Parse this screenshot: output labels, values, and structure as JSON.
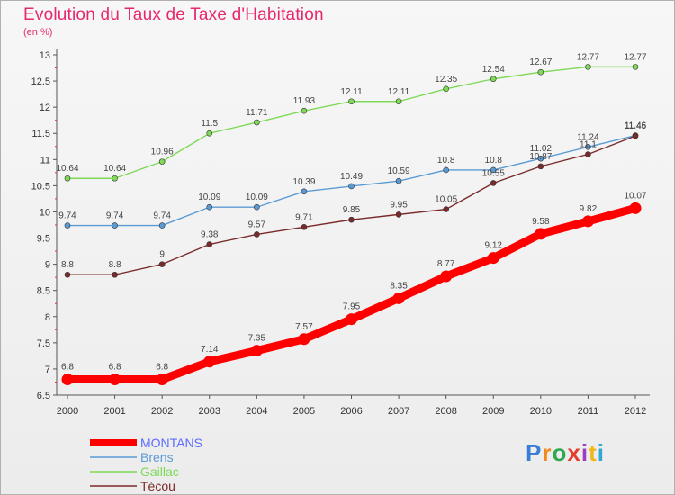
{
  "header": {
    "title": "Evolution du Taux de Taxe d'Habitation",
    "subtitle": "(en %)"
  },
  "logo": {
    "text": "Proxiti",
    "colors": [
      "#3a7fd5",
      "#f08a1c",
      "#2fa84f",
      "#e63a2b",
      "#9b3fbf",
      "#f0b81c",
      "#2fa8d5"
    ]
  },
  "chart_data": {
    "type": "line",
    "x": [
      "2000",
      "2001",
      "2002",
      "2003",
      "2004",
      "2005",
      "2006",
      "2007",
      "2008",
      "2009",
      "2010",
      "2011",
      "2012"
    ],
    "ylim": [
      6.5,
      13
    ],
    "yticks": [
      "6.5",
      "7",
      "7.5",
      "8",
      "8.5",
      "9",
      "9.5",
      "10",
      "10.5",
      "11",
      "11.5",
      "12",
      "12.5",
      "13"
    ],
    "title": "Evolution du Taux de Taxe d'Habitation",
    "ylabel": "(en %)",
    "grid": false,
    "legend": "bottom-left",
    "series": [
      {
        "name": "MONTANS",
        "color": "#ff0000",
        "values": [
          6.8,
          6.8,
          6.8,
          7.14,
          7.35,
          7.57,
          7.95,
          8.35,
          8.77,
          9.12,
          9.58,
          9.82,
          10.07
        ],
        "labels": [
          "6.8",
          "6.8",
          "6.8",
          "7.14",
          "7.35",
          "7.57",
          "7.95",
          "8.35",
          "8.77",
          "9.12",
          "9.58",
          "9.82",
          "10.07"
        ],
        "legend_color": "#5c6cff"
      },
      {
        "name": "Brens",
        "color": "#5b9bd5",
        "values": [
          9.74,
          9.74,
          9.74,
          10.09,
          10.09,
          10.39,
          10.49,
          10.59,
          10.8,
          10.8,
          11.02,
          11.24,
          11.46
        ],
        "labels": [
          "9.74",
          "9.74",
          "9.74",
          "10.09",
          "10.09",
          "10.39",
          "10.49",
          "10.59",
          "10.8",
          "10.8",
          "11.02",
          "11.24",
          "11.46"
        ],
        "legend_color": "#5b9bd5"
      },
      {
        "name": "Gaillac",
        "color": "#7ed957",
        "values": [
          10.64,
          10.64,
          10.96,
          11.5,
          11.71,
          11.93,
          12.11,
          12.11,
          12.35,
          12.54,
          12.67,
          12.77,
          12.77
        ],
        "labels": [
          "10.64",
          "10.64",
          "10.96",
          "11.5",
          "11.71",
          "11.93",
          "12.11",
          "12.11",
          "12.35",
          "12.54",
          "12.67",
          "12.77",
          "12.77"
        ],
        "legend_color": "#7ed957"
      },
      {
        "name": "Técou",
        "color": "#7a2a2a",
        "values": [
          8.8,
          8.8,
          9,
          9.38,
          9.57,
          9.71,
          9.85,
          9.95,
          10.05,
          10.55,
          10.87,
          11.1,
          11.45
        ],
        "labels": [
          "8.8",
          "8.8",
          "9",
          "9.38",
          "9.57",
          "9.71",
          "9.85",
          "9.95",
          "10.05",
          "10.55",
          "10.87",
          "11.1",
          "11.45"
        ],
        "legend_color": "#7a2a2a"
      }
    ]
  }
}
